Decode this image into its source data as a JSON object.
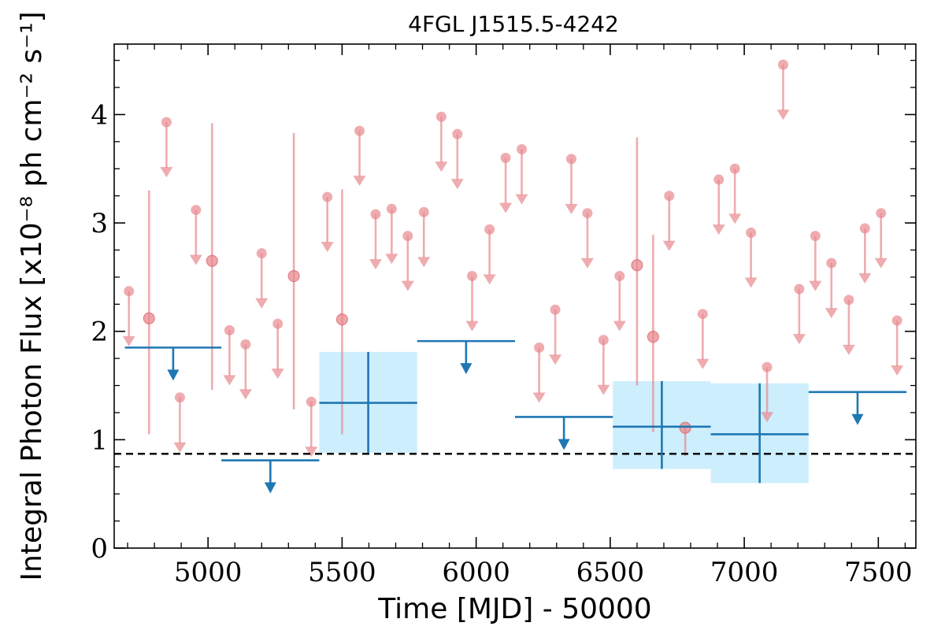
{
  "chart_data": {
    "type": "scatter",
    "title": "4FGL J1515.5-4242",
    "xlabel": "Time [MJD] - 50000",
    "ylabel": "Integral Photon Flux [x10⁻⁸ ph cm⁻² s⁻¹]",
    "xlim": [
      4650,
      7640
    ],
    "ylim": [
      0,
      4.65
    ],
    "xticks": [
      "5000",
      "5500",
      "6000",
      "6500",
      "7000",
      "7500"
    ],
    "yticks": [
      "0",
      "1",
      "2",
      "3",
      "4"
    ],
    "reference_flux": 0.87,
    "colors": {
      "short_bins": "#e8898f",
      "long_bins": "#1f77b4",
      "long_band": "#cdeefc",
      "reference_line": "#000000"
    },
    "series": [
      {
        "kind": "short-bin-upper-limits",
        "points": [
          {
            "x": 4705,
            "y": 2.37
          },
          {
            "x": 4845,
            "y": 3.93
          },
          {
            "x": 4895,
            "y": 1.39
          },
          {
            "x": 4955,
            "y": 3.12
          },
          {
            "x": 5080,
            "y": 2.01
          },
          {
            "x": 5140,
            "y": 1.88
          },
          {
            "x": 5200,
            "y": 2.72
          },
          {
            "x": 5260,
            "y": 2.07
          },
          {
            "x": 5385,
            "y": 1.35
          },
          {
            "x": 5445,
            "y": 3.24
          },
          {
            "x": 5565,
            "y": 3.85
          },
          {
            "x": 5625,
            "y": 3.08
          },
          {
            "x": 5685,
            "y": 3.13
          },
          {
            "x": 5745,
            "y": 2.88
          },
          {
            "x": 5805,
            "y": 3.1
          },
          {
            "x": 5870,
            "y": 3.98
          },
          {
            "x": 5930,
            "y": 3.82
          },
          {
            "x": 5985,
            "y": 2.51
          },
          {
            "x": 6050,
            "y": 2.94
          },
          {
            "x": 6110,
            "y": 3.6
          },
          {
            "x": 6170,
            "y": 3.68
          },
          {
            "x": 6235,
            "y": 1.85
          },
          {
            "x": 6295,
            "y": 2.2
          },
          {
            "x": 6355,
            "y": 3.59
          },
          {
            "x": 6415,
            "y": 3.09
          },
          {
            "x": 6475,
            "y": 1.92
          },
          {
            "x": 6535,
            "y": 2.51
          },
          {
            "x": 6720,
            "y": 3.25
          },
          {
            "x": 6845,
            "y": 2.16
          },
          {
            "x": 6905,
            "y": 3.4
          },
          {
            "x": 6965,
            "y": 3.5
          },
          {
            "x": 7025,
            "y": 2.91
          },
          {
            "x": 7085,
            "y": 1.67
          },
          {
            "x": 7145,
            "y": 4.46
          },
          {
            "x": 7205,
            "y": 2.39
          },
          {
            "x": 7265,
            "y": 2.88
          },
          {
            "x": 7325,
            "y": 2.63
          },
          {
            "x": 7390,
            "y": 2.29
          },
          {
            "x": 7450,
            "y": 2.95
          },
          {
            "x": 7510,
            "y": 3.09
          },
          {
            "x": 7570,
            "y": 2.1
          }
        ]
      },
      {
        "kind": "short-bin-detections",
        "points": [
          {
            "x": 4780,
            "y": 2.12,
            "ylow": 1.05,
            "yhigh": 3.3
          },
          {
            "x": 5015,
            "y": 2.65,
            "ylow": 1.46,
            "yhigh": 3.92
          },
          {
            "x": 5320,
            "y": 2.51,
            "ylow": 1.28,
            "yhigh": 3.83
          },
          {
            "x": 5500,
            "y": 2.11,
            "ylow": 1.05,
            "yhigh": 3.31
          },
          {
            "x": 6600,
            "y": 2.61,
            "ylow": 1.5,
            "yhigh": 3.79
          },
          {
            "x": 6660,
            "y": 1.95,
            "ylow": 1.07,
            "yhigh": 2.89
          },
          {
            "x": 6780,
            "y": 1.11,
            "ylow": 0.85,
            "yhigh": 1.11
          }
        ]
      },
      {
        "kind": "long-bin-upper-limits",
        "bins": [
          {
            "x0": 4690,
            "x1": 5050,
            "y": 1.85
          },
          {
            "x0": 5050,
            "x1": 5415,
            "y": 0.81
          },
          {
            "x0": 5780,
            "x1": 6145,
            "y": 1.91
          },
          {
            "x0": 6145,
            "x1": 6510,
            "y": 1.21
          },
          {
            "x0": 7240,
            "x1": 7605,
            "y": 1.44
          }
        ]
      },
      {
        "kind": "long-bin-detections",
        "bins": [
          {
            "x0": 5415,
            "x1": 5780,
            "y": 1.34,
            "ylow": 0.88,
            "yhigh": 1.81
          },
          {
            "x0": 6510,
            "x1": 6875,
            "y": 1.12,
            "ylow": 0.73,
            "yhigh": 1.54
          },
          {
            "x0": 6875,
            "x1": 7240,
            "y": 1.05,
            "ylow": 0.6,
            "yhigh": 1.52
          }
        ]
      }
    ]
  }
}
